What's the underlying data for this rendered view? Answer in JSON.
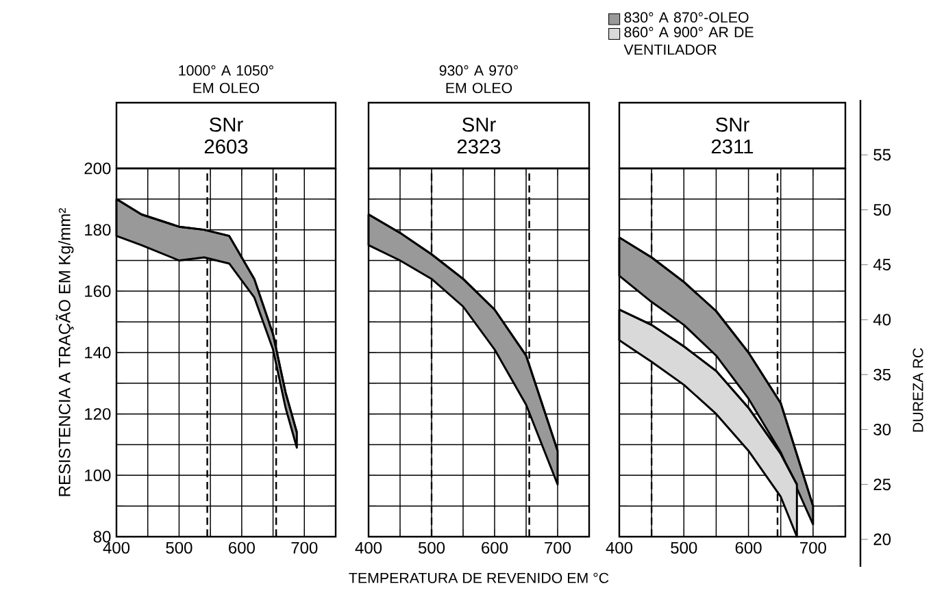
{
  "chart_data": [
    {
      "type": "line",
      "title": "SNr 2603",
      "subtitle": "1000° A 1050° EM OLEO",
      "ylabel": "RESISTENCIA A TRAÇÃO EM Kg/mm²",
      "xlim": [
        400,
        750
      ],
      "xticks": [
        400,
        {
          "value": 450,
          "label": null
        },
        500,
        {
          "value": 550,
          "label": null
        },
        600,
        {
          "value": 650,
          "label": null
        },
        700
      ],
      "ylim": [
        80,
        200
      ],
      "yticks": [
        80,
        {
          "value": 90,
          "label": null
        },
        100,
        {
          "value": 110,
          "label": null
        },
        120,
        {
          "value": 130,
          "label": null
        },
        140,
        {
          "value": 150,
          "label": null
        },
        160,
        {
          "value": 170,
          "label": null
        },
        180,
        {
          "value": 190,
          "label": null
        },
        200
      ],
      "grid": true,
      "ref_lines": [
        {
          "axis": "x",
          "value": 545,
          "line_style": "dashed",
          "color": "#000000"
        },
        {
          "axis": "x",
          "value": 655,
          "line_style": "dashed",
          "color": "#000000"
        }
      ],
      "series": [
        {
          "color": "#000000",
          "x": [
            400,
            440,
            500,
            540,
            580,
            620,
            650,
            670,
            688
          ],
          "values": [
            190,
            185,
            181,
            180,
            178,
            164,
            146,
            127,
            114
          ],
          "upper": [
            190,
            185,
            181,
            180,
            178,
            164,
            146,
            127,
            114
          ],
          "lower": [
            178,
            175,
            170,
            171,
            169,
            158,
            141,
            122,
            109
          ]
        }
      ]
    },
    {
      "type": "line",
      "title": "SNr 2323",
      "subtitle": "930° A 970° EM OLEO",
      "xlabel": "TEMPERATURA DE REVENIDO EM °C",
      "xlim": [
        400,
        750
      ],
      "xticks": [
        400,
        {
          "value": 450,
          "label": null
        },
        500,
        {
          "value": 550,
          "label": null
        },
        600,
        {
          "value": 650,
          "label": null
        },
        700
      ],
      "ylim": [
        80,
        200
      ],
      "yticks": [
        80,
        90,
        100,
        110,
        120,
        130,
        140,
        150,
        160,
        170,
        180,
        190,
        200
      ],
      "tick_labels": "x",
      "grid": true,
      "ref_lines": [
        {
          "axis": "x",
          "value": 500,
          "line_style": "dashed",
          "color": "#000000"
        },
        {
          "axis": "x",
          "value": 655,
          "line_style": "dashed",
          "color": "#000000"
        }
      ],
      "series": [
        {
          "color": "#000000",
          "x": [
            400,
            450,
            500,
            550,
            600,
            650,
            700
          ],
          "values": [
            185,
            179,
            172,
            164,
            154,
            139,
            108
          ],
          "upper": [
            185,
            179,
            172,
            164,
            154,
            139,
            108
          ],
          "lower": [
            175,
            170,
            164,
            155,
            141,
            123,
            97
          ]
        }
      ]
    },
    {
      "type": "line",
      "title": "SNr 2311",
      "y2label": "DUREZA RC",
      "xlim": [
        400,
        750
      ],
      "xticks": [
        400,
        {
          "value": 450,
          "label": null
        },
        500,
        {
          "value": 550,
          "label": null
        },
        600,
        {
          "value": 650,
          "label": null
        },
        700
      ],
      "ylim": [
        80,
        200
      ],
      "yticks": [
        80,
        90,
        100,
        110,
        120,
        130,
        140,
        150,
        160,
        170,
        180,
        190,
        200
      ],
      "y2lim": [
        17.5,
        60
      ],
      "y2ticks": [
        {
          "value": 20,
          "label": "20"
        },
        {
          "value": 25,
          "label": "25"
        },
        {
          "value": 30,
          "label": "30"
        },
        {
          "value": 35,
          "label": "35"
        },
        {
          "value": 40,
          "label": "40"
        },
        {
          "value": 45,
          "label": "45"
        },
        {
          "value": 50,
          "label": "50"
        },
        {
          "value": 55,
          "label": "55"
        }
      ],
      "tick_labels": "x",
      "grid": true,
      "legend": "top",
      "ref_lines": [
        {
          "axis": "x",
          "value": 450,
          "line_style": "dashed",
          "color": "#000000"
        },
        {
          "axis": "x",
          "value": 645,
          "line_style": "dashed",
          "color": "#000000"
        }
      ],
      "series": [
        {
          "name": "830° A 870°-OLEO",
          "color": "#000000",
          "x": [
            400,
            450,
            500,
            550,
            600,
            650,
            700
          ],
          "values": [
            177.5,
            171,
            163,
            153.5,
            140,
            123.5,
            90
          ],
          "upper": [
            177.5,
            171,
            163,
            153.5,
            140,
            123.5,
            90
          ],
          "lower": [
            165,
            156.5,
            149,
            139,
            125,
            107.5,
            84
          ]
        },
        {
          "name": "860° A 900° AR DE VENTILADOR",
          "color": "#000000",
          "x": [
            400,
            450,
            500,
            550,
            600,
            650,
            675
          ],
          "values": [
            154,
            149,
            142,
            134,
            122,
            107,
            97
          ],
          "upper": [
            154,
            149,
            142,
            134,
            122,
            107,
            97
          ],
          "lower": [
            144,
            137,
            129.5,
            120,
            108,
            93,
            80
          ]
        }
      ]
    }
  ]
}
